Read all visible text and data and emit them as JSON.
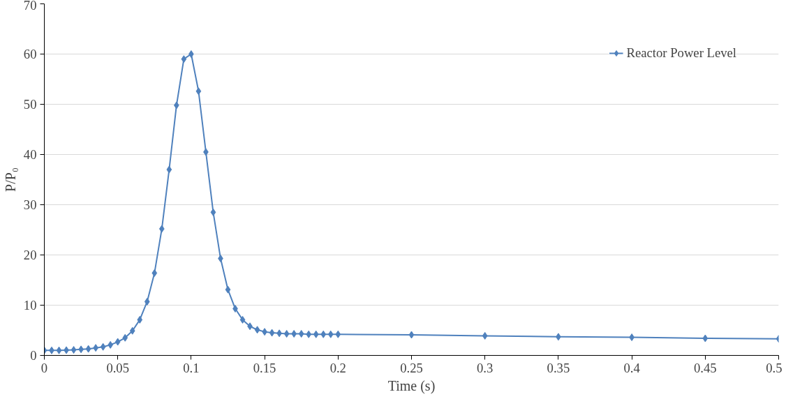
{
  "chart_data": {
    "type": "line",
    "xlabel": "Time (s)",
    "ylabel": "P/P₀",
    "x": [
      0,
      0.005,
      0.01,
      0.015,
      0.02,
      0.025,
      0.03,
      0.035,
      0.04,
      0.045,
      0.05,
      0.055,
      0.06,
      0.065,
      0.07,
      0.075,
      0.08,
      0.085,
      0.09,
      0.095,
      0.1,
      0.105,
      0.11,
      0.115,
      0.12,
      0.125,
      0.13,
      0.135,
      0.14,
      0.145,
      0.15,
      0.155,
      0.16,
      0.165,
      0.17,
      0.175,
      0.18,
      0.185,
      0.19,
      0.195,
      0.2,
      0.25,
      0.3,
      0.35,
      0.4,
      0.45,
      0.5
    ],
    "series": [
      {
        "name": "Reactor Power Level",
        "color": "#4f81bd",
        "values": [
          1.0,
          1.0,
          1.0,
          1.05,
          1.1,
          1.2,
          1.3,
          1.5,
          1.7,
          2.1,
          2.7,
          3.5,
          4.9,
          7.1,
          10.7,
          16.4,
          25.2,
          37.0,
          49.8,
          59.0,
          60.0,
          52.6,
          40.5,
          28.5,
          19.3,
          13.1,
          9.3,
          7.1,
          5.8,
          5.1,
          4.7,
          4.5,
          4.4,
          4.3,
          4.3,
          4.3,
          4.2,
          4.2,
          4.2,
          4.2,
          4.2,
          4.1,
          3.9,
          3.7,
          3.6,
          3.4,
          3.3
        ]
      }
    ],
    "xlim": [
      0,
      0.5
    ],
    "xticks": [
      0,
      0.05,
      0.1,
      0.15,
      0.2,
      0.25,
      0.3,
      0.35,
      0.4,
      0.45,
      0.5
    ],
    "ylim": [
      0,
      70
    ],
    "yticks": [
      0,
      10,
      20,
      30,
      40,
      50,
      60,
      70
    ],
    "grid": "y",
    "legend": "top right",
    "marker": "diamond",
    "line_style": "solid"
  }
}
